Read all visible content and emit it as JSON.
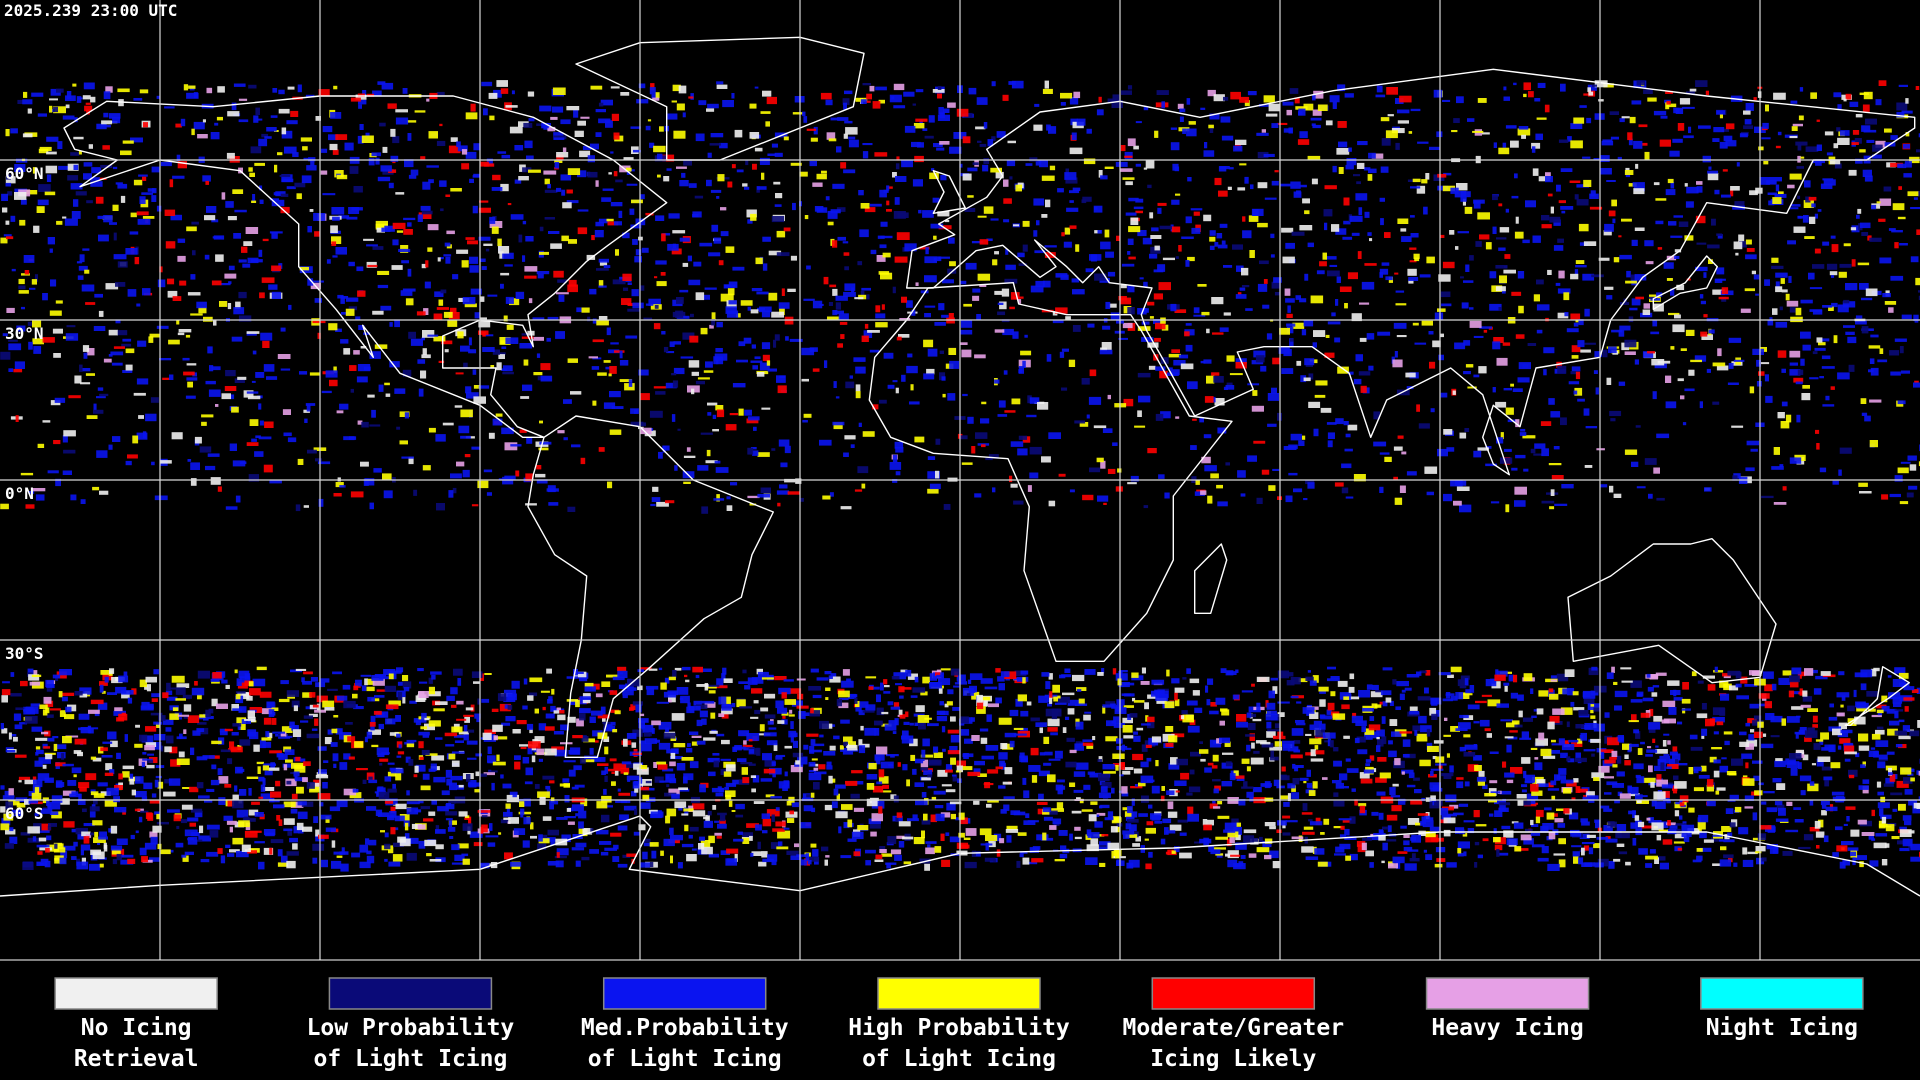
{
  "header": {
    "timestamp": "2025.239 23:00 UTC"
  },
  "map": {
    "latitude_labels": [
      "60°N",
      "30°N",
      "0°N",
      "30°S",
      "60°S"
    ]
  },
  "legend": [
    {
      "label_lines": [
        "No Icing",
        "Retrieval"
      ],
      "color": "#f0f0f0"
    },
    {
      "label_lines": [
        "Low Probability",
        "of Light Icing"
      ],
      "color": "#0a0a78"
    },
    {
      "label_lines": [
        "Med.Probability",
        "of Light Icing"
      ],
      "color": "#0a14f0"
    },
    {
      "label_lines": [
        "High Probability",
        "of Light Icing"
      ],
      "color": "#ffff00"
    },
    {
      "label_lines": [
        "Moderate/Greater",
        "Icing Likely"
      ],
      "color": "#ff0000"
    },
    {
      "label_lines": [
        "Heavy Icing"
      ],
      "color": "#e6a0e6"
    },
    {
      "label_lines": [
        "Night Icing"
      ],
      "color": "#00ffff"
    }
  ]
}
